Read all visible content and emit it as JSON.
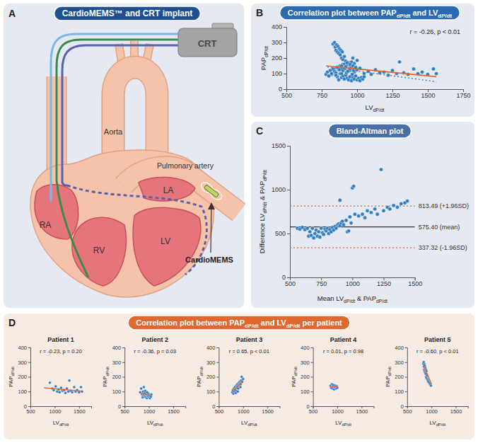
{
  "diagram": {
    "panel": "A",
    "title": "CardioMEMS™ and CRT implant",
    "labels": {
      "crt": "CRT",
      "aorta": "Aorta",
      "pulmonary_artery": "Pulmonary artery",
      "la": "LA",
      "ra": "RA",
      "rv": "RV",
      "lv": "LV",
      "cardiomems": "CardioMEMS"
    }
  },
  "group_title": {
    "panel": "D",
    "title": [
      "Correlation plot between PAP",
      "dP/dt",
      " and LV",
      "dP/dt",
      " per patient"
    ]
  },
  "chart_data": [
    {
      "panel": "B",
      "type": "scatter",
      "title": [
        "Correlation plot between PAP",
        "dP/dt",
        " and LV",
        "dP/dt"
      ],
      "xlabel": [
        "LV",
        "dP/dt"
      ],
      "ylabel": [
        "PAP",
        "dP/dt"
      ],
      "annotation": "r = -0.26, p < 0.01",
      "xlim": [
        500,
        1750
      ],
      "ylim": [
        0,
        400
      ],
      "xticks": [
        500,
        750,
        1000,
        1250,
        1500,
        1750
      ],
      "yticks": [
        0,
        100,
        200,
        300,
        400
      ],
      "series": [
        {
          "type": "scatter",
          "marker": "circle",
          "color": "#2f7ec2",
          "x": [
            900,
            950,
            980,
            1020,
            1050,
            1080,
            1100,
            1130,
            1160,
            1190,
            1220,
            1250,
            1280,
            1300,
            1330,
            1360,
            1400,
            1430,
            1460,
            1500,
            1540,
            1560,
            820,
            840,
            860,
            870,
            880,
            890,
            900,
            910,
            920,
            930,
            940,
            950,
            960,
            970,
            980,
            990,
            1000,
            1010,
            1020,
            1030,
            1040,
            1050,
            895,
            925,
            965,
            780,
            790,
            800,
            810,
            820,
            830,
            840,
            850,
            860,
            870,
            880,
            890,
            900,
            910,
            920,
            930,
            940,
            950,
            960,
            980,
            1000,
            850,
            890,
            945,
            970,
            860,
            875,
            890,
            900,
            910,
            920,
            935,
            950,
            960,
            975,
            990,
            1000,
            830,
            840,
            845,
            850,
            855,
            860,
            865,
            870,
            875,
            880,
            885,
            890,
            895,
            900,
            910,
            920,
            930,
            950,
            970,
            990
          ],
          "values": [
            160,
            120,
            110,
            135,
            100,
            115,
            95,
            125,
            105,
            110,
            90,
            120,
            100,
            175,
            105,
            95,
            130,
            100,
            110,
            95,
            130,
            100,
            95,
            120,
            80,
            60,
            100,
            75,
            85,
            65,
            90,
            70,
            60,
            80,
            55,
            75,
            65,
            85,
            60,
            70,
            55,
            75,
            65,
            80,
            130,
            105,
            95,
            95,
            110,
            85,
            120,
            100,
            130,
            115,
            105,
            140,
            125,
            150,
            135,
            120,
            160,
            145,
            155,
            170,
            150,
            175,
            165,
            185,
            90,
            100,
            130,
            200,
            140,
            125,
            150,
            120,
            135,
            145,
            115,
            130,
            140,
            120,
            135,
            125,
            290,
            300,
            270,
            250,
            285,
            240,
            275,
            230,
            260,
            220,
            250,
            200,
            240,
            190,
            210,
            180,
            170,
            160,
            150,
            140
          ]
        },
        {
          "type": "line",
          "line_style": "dotted",
          "color": "#5d82b3",
          "x": [
            790,
            1560
          ],
          "values": [
            142,
            48
          ]
        },
        {
          "type": "line",
          "line_style": "solid",
          "color": "#e8632b",
          "x": [
            780,
            1560
          ],
          "values": [
            150,
            80
          ]
        }
      ]
    },
    {
      "panel": "C",
      "type": "scatter",
      "title": [
        "Bland-Altman plot"
      ],
      "xlabel": [
        "Mean LV",
        "dP/dt",
        " & PAP",
        "dP/dt"
      ],
      "ylabel": [
        "Difference LV",
        "dP/dt",
        " & PAP",
        "dP/dt"
      ],
      "xlim": [
        500,
        1500
      ],
      "ylim": [
        0,
        1500
      ],
      "xticks": [
        500,
        750,
        1000,
        1250,
        1500
      ],
      "yticks": [
        0,
        500,
        1000,
        1500
      ],
      "reference_lines": [
        {
          "value": 813.49,
          "label": "813.49 (+1.96SD)",
          "line_style": "dotted",
          "color": "#e0602a"
        },
        {
          "value": 575.4,
          "label": "575.40 (mean)",
          "line_style": "solid",
          "color": "#333333"
        },
        {
          "value": 337.32,
          "label": "337.32 (-1.96SD)",
          "line_style": "dotted",
          "color": "#e0602a"
        }
      ],
      "series": [
        {
          "type": "scatter",
          "marker": "circle",
          "color": "#2f7ec2",
          "x": [
            560,
            580,
            600,
            620,
            640,
            650,
            660,
            670,
            680,
            690,
            700,
            710,
            720,
            730,
            740,
            750,
            760,
            770,
            780,
            790,
            800,
            810,
            820,
            830,
            840,
            850,
            860,
            870,
            880,
            890,
            900,
            910,
            920,
            930,
            950,
            960,
            970,
            980,
            990,
            1000,
            1010,
            1020,
            1050,
            1080,
            1100,
            1120,
            1150,
            1180,
            1200,
            1230,
            1250,
            1280,
            1300,
            1330,
            1360,
            1390,
            1420,
            1440,
            900
          ],
          "values": [
            560,
            550,
            570,
            545,
            560,
            470,
            520,
            480,
            560,
            450,
            500,
            540,
            470,
            520,
            460,
            560,
            510,
            490,
            550,
            530,
            560,
            500,
            545,
            520,
            570,
            540,
            580,
            560,
            600,
            610,
            590,
            620,
            640,
            600,
            650,
            520,
            530,
            690,
            620,
            1020,
            1040,
            720,
            700,
            720,
            680,
            760,
            740,
            780,
            720,
            1230,
            760,
            800,
            780,
            820,
            800,
            840,
            850,
            870,
            880
          ]
        }
      ]
    },
    {
      "type": "scatter",
      "title": "Patient 1",
      "xlabel": [
        "LV",
        "dP/dt"
      ],
      "ylabel": [
        "PAP",
        "dP/dt"
      ],
      "annotation": "r = -0.23, p = 0.20",
      "xlim": [
        500,
        1750
      ],
      "ylim": [
        0,
        400
      ],
      "xticks": [
        500,
        1000,
        1500
      ],
      "yticks": [
        0,
        100,
        200,
        300,
        400
      ],
      "series": [
        {
          "type": "scatter",
          "marker": "circle",
          "color": "#2f7ec2",
          "x": [
            900,
            950,
            980,
            1020,
            1050,
            1080,
            1100,
            1130,
            1160,
            1190,
            1220,
            1250,
            1280,
            1300,
            1330,
            1360,
            1400,
            1430,
            1460,
            1500,
            1540,
            1560
          ],
          "values": [
            160,
            120,
            110,
            135,
            100,
            115,
            95,
            125,
            105,
            110,
            90,
            120,
            100,
            175,
            105,
            95,
            130,
            100,
            110,
            95,
            130,
            100
          ]
        },
        {
          "type": "line",
          "line_style": "solid",
          "color": "#e8632b",
          "x": [
            780,
            1560
          ],
          "values": [
            125,
            103
          ]
        }
      ]
    },
    {
      "type": "scatter",
      "title": "Patient 2",
      "xlabel": [
        "LV",
        "dP/dt"
      ],
      "ylabel": [
        "PAP",
        "dP/dt"
      ],
      "annotation": "r = -0.36, p = 0.03",
      "xlim": [
        500,
        1750
      ],
      "ylim": [
        0,
        400
      ],
      "xticks": [
        500,
        1000,
        1500
      ],
      "yticks": [
        0,
        100,
        200,
        300,
        400
      ],
      "series": [
        {
          "type": "scatter",
          "marker": "circle",
          "color": "#2f7ec2",
          "x": [
            820,
            840,
            860,
            870,
            880,
            890,
            900,
            910,
            920,
            930,
            940,
            950,
            960,
            970,
            980,
            990,
            1000,
            1010,
            1020,
            1030,
            1040,
            1050,
            895,
            925,
            965
          ],
          "values": [
            95,
            120,
            80,
            60,
            100,
            75,
            85,
            65,
            90,
            70,
            60,
            80,
            55,
            75,
            65,
            85,
            60,
            70,
            55,
            75,
            65,
            80,
            130,
            105,
            95
          ]
        },
        {
          "type": "line",
          "line_style": "solid",
          "color": "#e8632b",
          "x": [
            820,
            1050
          ],
          "values": [
            92,
            68
          ]
        }
      ]
    },
    {
      "type": "scatter",
      "title": "Patient 3",
      "xlabel": [
        "LV",
        "dP/dt"
      ],
      "ylabel": [
        "PAP",
        "dP/dt"
      ],
      "annotation": "r = 0.65, p < 0.01",
      "xlim": [
        500,
        1750
      ],
      "ylim": [
        0,
        400
      ],
      "xticks": [
        500,
        1000,
        1500
      ],
      "yticks": [
        0,
        100,
        200,
        300,
        400
      ],
      "series": [
        {
          "type": "scatter",
          "marker": "circle",
          "color": "#2f7ec2",
          "x": [
            780,
            790,
            800,
            810,
            820,
            830,
            840,
            850,
            860,
            870,
            880,
            890,
            900,
            910,
            920,
            930,
            940,
            950,
            960,
            980,
            1000,
            850,
            890,
            945,
            970
          ],
          "values": [
            95,
            110,
            85,
            120,
            100,
            130,
            115,
            105,
            140,
            125,
            150,
            135,
            120,
            160,
            145,
            155,
            170,
            150,
            175,
            165,
            185,
            90,
            100,
            130,
            200
          ]
        },
        {
          "type": "line",
          "line_style": "solid",
          "color": "#e8632b",
          "x": [
            780,
            1000
          ],
          "values": [
            95,
            175
          ]
        }
      ]
    },
    {
      "type": "scatter",
      "title": "Patient 4",
      "xlabel": [
        "LV",
        "dP/dt"
      ],
      "ylabel": [
        "PAP",
        "dP/dt"
      ],
      "annotation": "r = 0.01, p = 0.98",
      "xlim": [
        500,
        1750
      ],
      "ylim": [
        0,
        400
      ],
      "xticks": [
        500,
        1000,
        1500
      ],
      "yticks": [
        0,
        100,
        200,
        300,
        400
      ],
      "series": [
        {
          "type": "scatter",
          "marker": "circle",
          "color": "#2f7ec2",
          "x": [
            860,
            875,
            890,
            900,
            910,
            920,
            935,
            950,
            960,
            975,
            990,
            1000
          ],
          "values": [
            140,
            125,
            150,
            120,
            135,
            145,
            115,
            130,
            140,
            120,
            135,
            125
          ]
        },
        {
          "type": "line",
          "line_style": "solid",
          "color": "#e8632b",
          "x": [
            860,
            1000
          ],
          "values": [
            132,
            132
          ]
        }
      ]
    },
    {
      "type": "scatter",
      "title": "Patient 5",
      "xlabel": [
        "LV",
        "dP/dt"
      ],
      "ylabel": [
        "PAP",
        "dP/dt"
      ],
      "annotation": "r = -0.60, p < 0.01",
      "xlim": [
        500,
        1750
      ],
      "ylim": [
        0,
        400
      ],
      "xticks": [
        500,
        1000,
        1500
      ],
      "yticks": [
        0,
        100,
        200,
        300,
        400
      ],
      "series": [
        {
          "type": "scatter",
          "marker": "circle",
          "color": "#2f7ec2",
          "x": [
            830,
            840,
            845,
            850,
            855,
            860,
            865,
            870,
            875,
            880,
            885,
            890,
            895,
            900,
            910,
            920,
            930,
            950,
            970,
            990
          ],
          "values": [
            290,
            300,
            270,
            250,
            285,
            240,
            275,
            230,
            260,
            220,
            250,
            200,
            240,
            190,
            210,
            180,
            170,
            160,
            150,
            140
          ]
        },
        {
          "type": "line",
          "line_style": "solid",
          "color": "#e8632b",
          "x": [
            830,
            1000
          ],
          "values": [
            285,
            150
          ]
        }
      ]
    }
  ]
}
